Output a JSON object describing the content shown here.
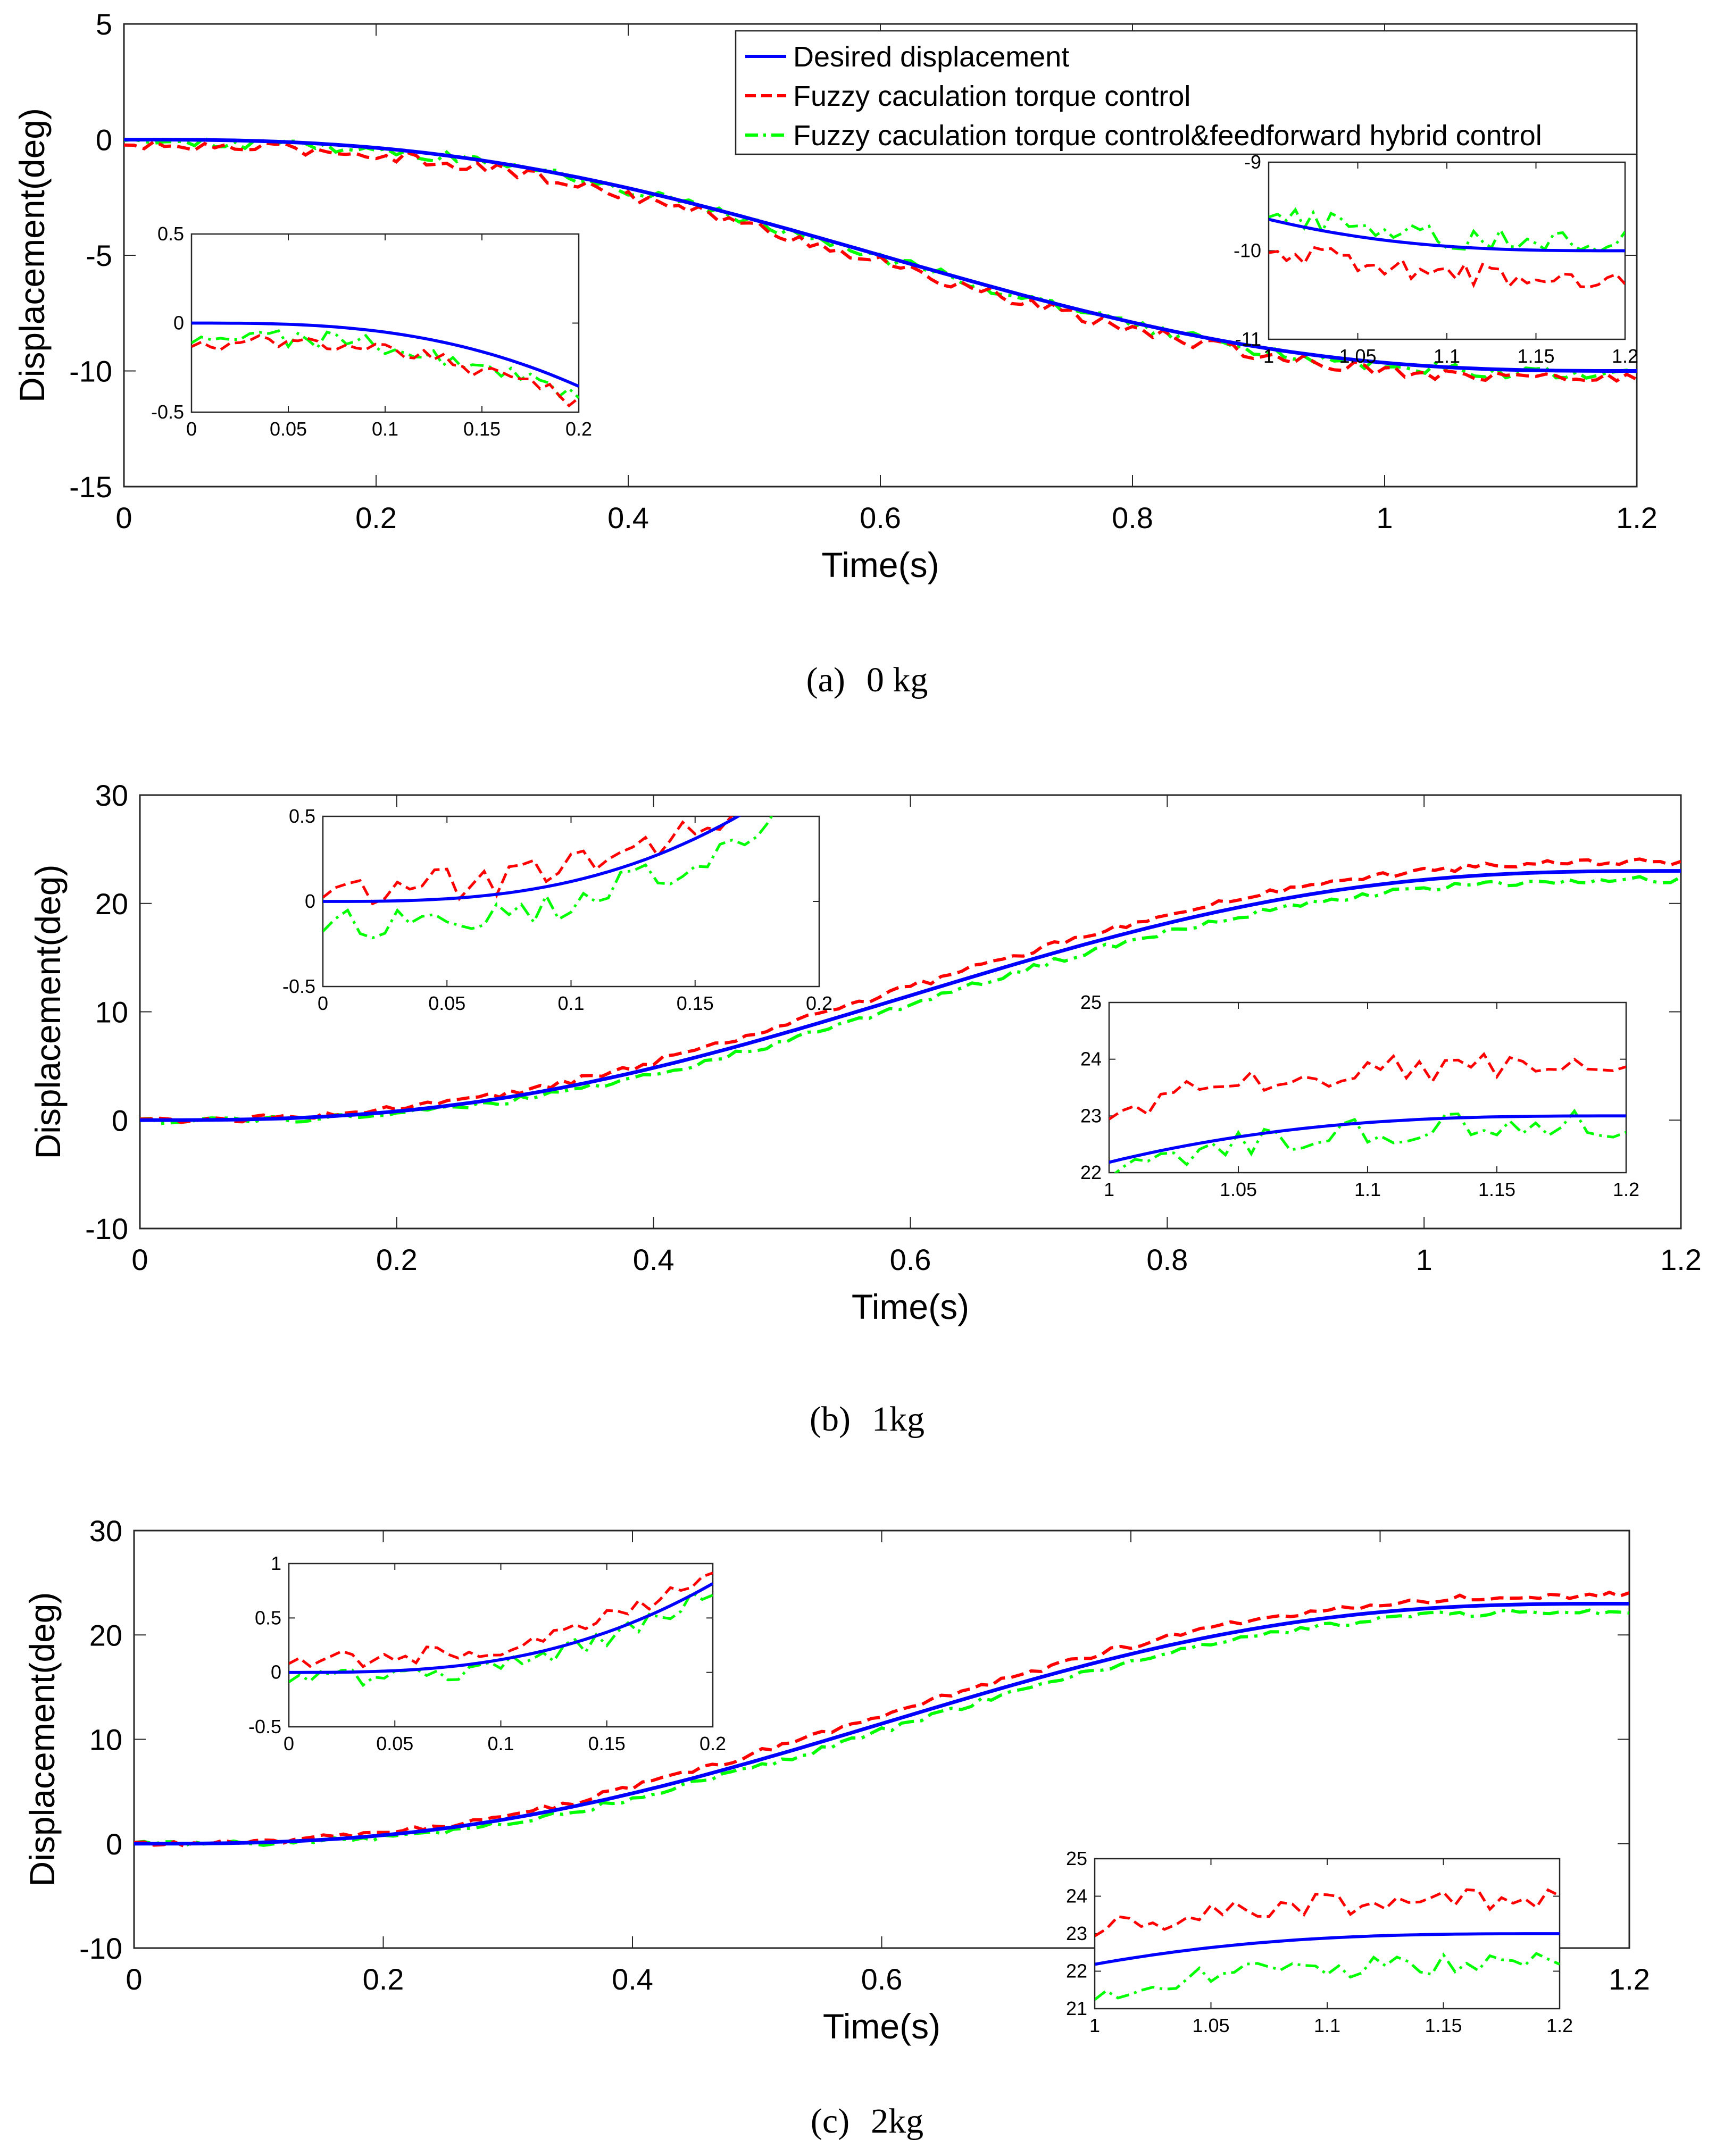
{
  "legend": [
    {
      "label": "Desired displacement",
      "color": "#0000ff",
      "style": "solid"
    },
    {
      "label": "Fuzzy caculation torque control",
      "color": "#ff0000",
      "style": "dashed"
    },
    {
      "label": "Fuzzy caculation torque control&feedforward hybrid control",
      "color": "#00ff00",
      "style": "dashdot"
    }
  ],
  "colors": {
    "desired": "#0000ff",
    "fuzzy": "#ff0000",
    "hybrid": "#00ff00"
  },
  "chart_data": [
    {
      "type": "line",
      "caption_label": "(a)",
      "caption_text": "0 kg",
      "xlabel": "Time(s)",
      "ylabel": "Displacement(deg)",
      "xlim": [
        0,
        1.2
      ],
      "ylim": [
        -15,
        5
      ],
      "xticks": [
        0,
        0.2,
        0.4,
        0.6,
        0.8,
        1,
        1.2
      ],
      "yticks": [
        -15,
        -10,
        -5,
        0,
        5
      ],
      "xtick_labels": [
        "0",
        "0.2",
        "0.4",
        "0.6",
        "0.8",
        "1",
        "1.2"
      ],
      "ytick_labels": [
        "-15",
        "-10",
        "-5",
        "0",
        "5"
      ],
      "desired": {
        "start": 0,
        "end": -10
      },
      "fuzzy_offset": -0.3,
      "hybrid_offset": -0.1,
      "noise": 0.25,
      "legend_shown": true,
      "insets": [
        {
          "xlim": [
            0,
            0.2
          ],
          "ylim": [
            -0.5,
            0.5
          ],
          "xticks": [
            0,
            0.05,
            0.1,
            0.15,
            0.2
          ],
          "yticks": [
            -0.5,
            0,
            0.5
          ],
          "xtick_labels": [
            "0",
            "0.05",
            "0.1",
            "0.15",
            "0.2"
          ],
          "ytick_labels": [
            "-0.5",
            "0",
            "0.5"
          ],
          "fuzzy_offset": -0.1,
          "hybrid_offset": -0.08,
          "noise": 0.05
        },
        {
          "xlim": [
            1,
            1.2
          ],
          "ylim": [
            -11,
            -9
          ],
          "xticks": [
            1,
            1.05,
            1.1,
            1.15,
            1.2
          ],
          "yticks": [
            -11,
            -10,
            -9
          ],
          "xtick_labels": [
            "1",
            "1.05",
            "1.1",
            "1.15",
            "1.2"
          ],
          "ytick_labels": [
            "-11",
            "-10",
            "-9"
          ],
          "fuzzy_offset": -0.3,
          "hybrid_offset": 0.1,
          "noise": 0.12
        }
      ]
    },
    {
      "type": "line",
      "caption_label": "(b)",
      "caption_text": "1kg",
      "xlabel": "Time(s)",
      "ylabel": "Displacement(deg)",
      "xlim": [
        0,
        1.2
      ],
      "ylim": [
        -10,
        30
      ],
      "xticks": [
        0,
        0.2,
        0.4,
        0.6,
        0.8,
        1,
        1.2
      ],
      "yticks": [
        -10,
        0,
        10,
        20,
        30
      ],
      "xtick_labels": [
        "0",
        "0.2",
        "0.4",
        "0.6",
        "0.8",
        "1",
        "1.2"
      ],
      "ytick_labels": [
        "-10",
        "0",
        "10",
        "20",
        "30"
      ],
      "desired": {
        "start": 0,
        "end": 23
      },
      "fuzzy_offset": 0.8,
      "hybrid_offset": -0.8,
      "noise": 0.3,
      "legend_shown": false,
      "insets": [
        {
          "xlim": [
            0,
            0.2
          ],
          "ylim": [
            -0.5,
            0.5
          ],
          "xticks": [
            0,
            0.05,
            0.1,
            0.15,
            0.2
          ],
          "yticks": [
            -0.5,
            0,
            0.5
          ],
          "xtick_labels": [
            "0",
            "0.05",
            "0.1",
            "0.15",
            "0.2"
          ],
          "ytick_labels": [
            "-0.5",
            "0",
            "0.5"
          ],
          "fuzzy_offset": 0.08,
          "hybrid_offset": -0.12,
          "noise": 0.1
        },
        {
          "xlim": [
            1,
            1.2
          ],
          "ylim": [
            22,
            25
          ],
          "xticks": [
            1,
            1.05,
            1.1,
            1.15,
            1.2
          ],
          "yticks": [
            22,
            23,
            24,
            25
          ],
          "xtick_labels": [
            "1",
            "1.05",
            "1.1",
            "1.15",
            "1.2"
          ],
          "ytick_labels": [
            "22",
            "23",
            "24",
            "25"
          ],
          "fuzzy_offset": 0.9,
          "hybrid_offset": -0.15,
          "noise": 0.25
        }
      ]
    },
    {
      "type": "line",
      "caption_label": "(c)",
      "caption_text": "2kg",
      "xlabel": "Time(s)",
      "ylabel": "Displacement(deg)",
      "xlim": [
        0,
        1.2
      ],
      "ylim": [
        -10,
        30
      ],
      "xticks": [
        0,
        0.2,
        0.4,
        0.6,
        0.8,
        1,
        1.2
      ],
      "yticks": [
        -10,
        0,
        10,
        20,
        30
      ],
      "xtick_labels": [
        "0",
        "0.2",
        "0.4",
        "0.6",
        "0.8",
        "1",
        "1.2"
      ],
      "ytick_labels": [
        "-10",
        "0",
        "10",
        "20",
        "30"
      ],
      "desired": {
        "start": 0,
        "end": 23
      },
      "fuzzy_offset": 0.8,
      "hybrid_offset": -0.7,
      "noise": 0.3,
      "legend_shown": false,
      "insets": [
        {
          "xlim": [
            0,
            0.2
          ],
          "ylim": [
            -0.5,
            1
          ],
          "xticks": [
            0,
            0.05,
            0.1,
            0.15,
            0.2
          ],
          "yticks": [
            -0.5,
            0,
            0.5,
            1
          ],
          "xtick_labels": [
            "0",
            "0.05",
            "0.1",
            "0.15",
            "0.2"
          ],
          "ytick_labels": [
            "-0.5",
            "0",
            "0.5",
            "1"
          ],
          "fuzzy_offset": 0.12,
          "hybrid_offset": -0.05,
          "noise": 0.08
        },
        {
          "xlim": [
            1,
            1.2
          ],
          "ylim": [
            21,
            25
          ],
          "xticks": [
            1,
            1.05,
            1.1,
            1.15,
            1.2
          ],
          "yticks": [
            21,
            22,
            23,
            24,
            25
          ],
          "xtick_labels": [
            "1",
            "1.05",
            "1.1",
            "1.15",
            "1.2"
          ],
          "ytick_labels": [
            "21",
            "22",
            "23",
            "24",
            "25"
          ],
          "fuzzy_offset": 0.9,
          "hybrid_offset": -0.8,
          "noise": 0.3
        }
      ]
    }
  ]
}
